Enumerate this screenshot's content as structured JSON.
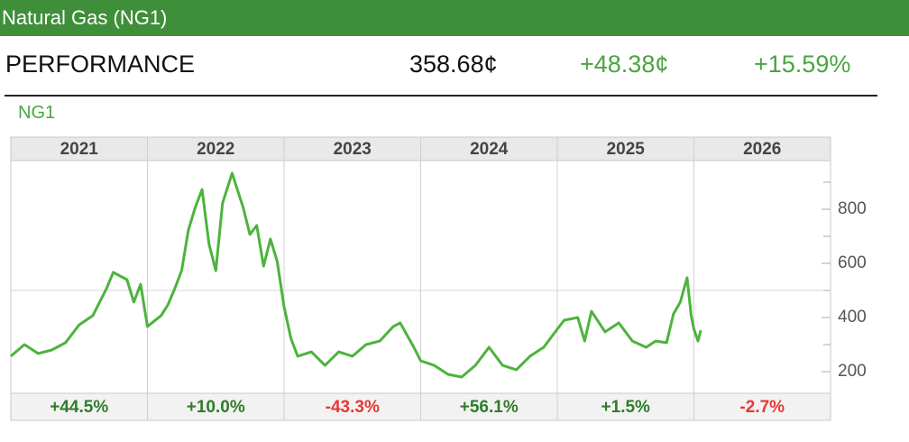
{
  "header": {
    "title": "Natural Gas (NG1)"
  },
  "performance": {
    "label": "PERFORMANCE",
    "price": "358.68¢",
    "change": "+48.38¢",
    "change_percent": "+15.59%"
  },
  "chart_data": {
    "type": "line",
    "categories": [
      "2021",
      "2022",
      "2023",
      "2024",
      "2025",
      "2026"
    ],
    "period_returns": {
      "values": [
        44.5,
        10.0,
        -43.3,
        56.1,
        1.5,
        -2.7
      ],
      "value_labels": [
        "+44.5%",
        "+10.0%",
        "-43.3%",
        "+56.1%",
        "+1.5%",
        "-2.7%"
      ]
    },
    "xlim": [
      2021,
      2027
    ],
    "ylim": [
      120,
      980
    ],
    "yticks": [
      200,
      400,
      600,
      800
    ],
    "minor_yticks": [
      300,
      500,
      700,
      900
    ],
    "ygrid": [
      500
    ],
    "series": [
      {
        "name": "NG1",
        "color": "#4db33d",
        "x": [
          2021.0,
          2021.1,
          2021.2,
          2021.3,
          2021.4,
          2021.5,
          2021.6,
          2021.7,
          2021.75,
          2021.85,
          2021.9,
          2021.95,
          2022.0,
          2022.1,
          2022.15,
          2022.2,
          2022.25,
          2022.3,
          2022.35,
          2022.4,
          2022.45,
          2022.5,
          2022.55,
          2022.62,
          2022.7,
          2022.75,
          2022.8,
          2022.85,
          2022.9,
          2022.95,
          2023.0,
          2023.05,
          2023.1,
          2023.2,
          2023.3,
          2023.4,
          2023.5,
          2023.6,
          2023.7,
          2023.8,
          2023.85,
          2023.95,
          2024.0,
          2024.1,
          2024.2,
          2024.3,
          2024.4,
          2024.5,
          2024.6,
          2024.7,
          2024.8,
          2024.9,
          2025.0,
          2025.05,
          2025.15,
          2025.2,
          2025.25,
          2025.35,
          2025.45,
          2025.55,
          2025.65,
          2025.72,
          2025.8,
          2025.85,
          2025.9,
          2025.95,
          2025.98,
          2026.0,
          2026.03,
          2026.05
        ],
        "values": [
          257,
          300,
          267,
          280,
          307,
          373,
          407,
          507,
          567,
          540,
          457,
          523,
          367,
          407,
          447,
          507,
          573,
          723,
          807,
          873,
          673,
          573,
          823,
          933,
          807,
          707,
          740,
          590,
          690,
          607,
          440,
          323,
          257,
          273,
          223,
          273,
          257,
          300,
          313,
          367,
          380,
          290,
          240,
          223,
          190,
          180,
          223,
          290,
          223,
          207,
          257,
          290,
          357,
          390,
          400,
          313,
          423,
          347,
          380,
          313,
          290,
          313,
          307,
          413,
          457,
          547,
          407,
          357,
          313,
          353
        ]
      }
    ]
  }
}
